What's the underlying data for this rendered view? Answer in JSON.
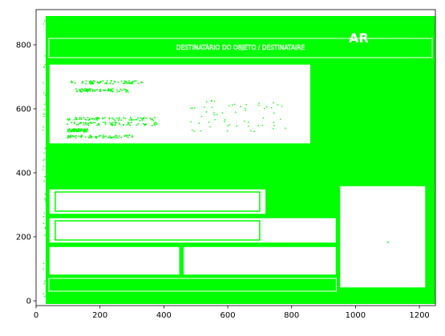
{
  "chart_data": {
    "type": "scatter",
    "title": "",
    "xlabel": "",
    "ylabel": "",
    "xlim": [
      0,
      1250
    ],
    "ylim": [
      -15,
      910
    ],
    "xticks": [
      0,
      200,
      400,
      600,
      800,
      1000,
      1200
    ],
    "yticks": [
      0,
      200,
      400,
      600,
      800
    ],
    "xtick_labels": [
      "0",
      "200",
      "400",
      "600",
      "800",
      "1000",
      "1200"
    ],
    "ytick_labels": [
      "0",
      "200",
      "400",
      "600",
      "800"
    ],
    "marker_color": "#00ff00",
    "grid": false,
    "legend": "none",
    "description_note": "",
    "embedded_text": {
      "ar_label": "AR",
      "header_label": "DESTINATÁRIO DO OBJETO / DESTINATAIRE"
    },
    "regions": {
      "outer_border": {
        "x": [
          40,
          1240
        ],
        "y": [
          20,
          880
        ]
      },
      "header_band": {
        "x": [
          40,
          1240
        ],
        "y": [
          760,
          820
        ]
      },
      "address_box": {
        "x": [
          40,
          860
        ],
        "y": [
          490,
          740
        ]
      },
      "right_info_top": {
        "x": [
          880,
          1220
        ],
        "y": [
          620,
          740
        ]
      },
      "right_info_mid": {
        "x": [
          880,
          1220
        ],
        "y": [
          460,
          600
        ]
      },
      "checkbox_col": {
        "x": [
          850,
          880
        ],
        "y": [
          380,
          480
        ]
      },
      "sig_block_a": {
        "x": [
          40,
          720
        ],
        "y": [
          270,
          350
        ]
      },
      "sig_block_b": {
        "x": [
          720,
          940
        ],
        "y": [
          270,
          350
        ]
      },
      "date_block": {
        "x": [
          40,
          940
        ],
        "y": [
          180,
          260
        ]
      },
      "bottom_left": {
        "x": [
          40,
          450
        ],
        "y": [
          80,
          170
        ]
      },
      "bottom_mid": {
        "x": [
          460,
          940
        ],
        "y": [
          80,
          170
        ]
      },
      "stamp_box": {
        "x": [
          950,
          1220
        ],
        "y": [
          40,
          360
        ]
      },
      "footer_band": {
        "x": [
          40,
          940
        ],
        "y": [
          30,
          70
        ]
      }
    }
  }
}
